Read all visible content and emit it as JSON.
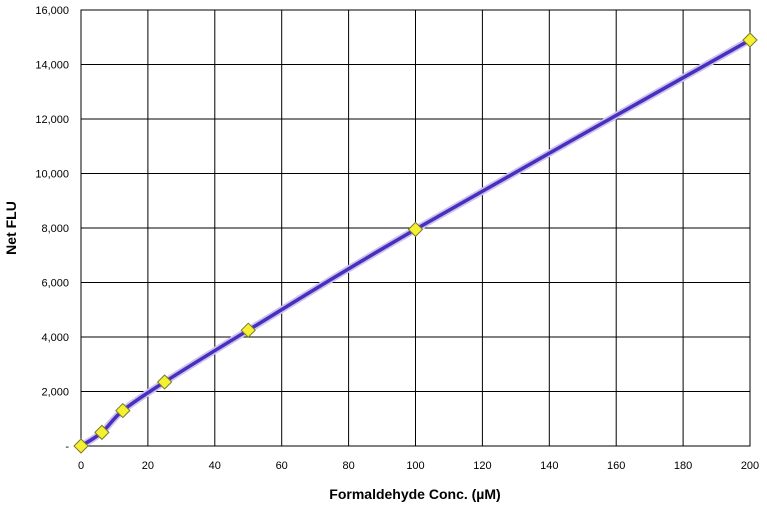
{
  "chart_data": {
    "type": "line",
    "title": "",
    "xlabel": "Formaldehyde Conc. (µM)",
    "ylabel": "Net FLU",
    "xlim": [
      0,
      200
    ],
    "ylim": [
      0,
      16000
    ],
    "x_ticks": [
      "0",
      "20",
      "40",
      "60",
      "80",
      "100",
      "120",
      "140",
      "160",
      "180",
      "200"
    ],
    "y_ticks": [
      "-",
      "2,000",
      "4,000",
      "6,000",
      "8,000",
      "10,000",
      "12,000",
      "14,000",
      "16,000"
    ],
    "grid": true,
    "legend": "none",
    "series": [
      {
        "line_color": "#4b2dbf",
        "marker": "diamond",
        "marker_color": "#f5f032",
        "x": [
          0,
          6.25,
          12.5,
          25,
          50,
          100,
          200
        ],
        "y": [
          0,
          500,
          1300,
          2350,
          4250,
          7950,
          14900
        ]
      }
    ]
  }
}
